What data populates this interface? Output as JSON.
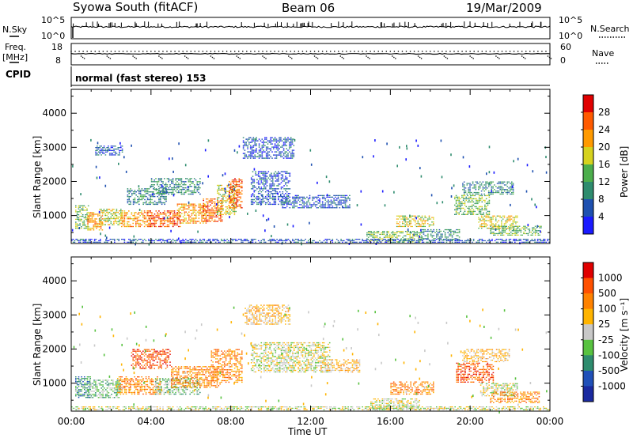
{
  "header": {
    "station": "Syowa South (fitACF)",
    "beam": "Beam 06",
    "date": "19/Mar/2009"
  },
  "noise_panel": {
    "left_label": "N.Sky",
    "right_label": "N.Search",
    "left_ticks": [
      "10^5",
      "10^0"
    ],
    "right_ticks": [
      "10^5",
      "10^0"
    ]
  },
  "freq_panel": {
    "left_label_1": "Freq.",
    "left_label_2": "[MHz]",
    "right_label": "Nave",
    "left_ticks": [
      "18",
      "8"
    ],
    "right_ticks": [
      "60",
      "0"
    ]
  },
  "cpid_panel": {
    "label": "CPID",
    "value": "normal (fast stereo) 153"
  },
  "colors": {
    "power_scale": [
      "#1a1aff",
      "#1e50b0",
      "#2e8c6e",
      "#4cae4c",
      "#d6d21e",
      "#ff9a00",
      "#ff5a00",
      "#e00000"
    ],
    "velocity_scale": [
      "#1a2aa0",
      "#2050b8",
      "#2e8c6e",
      "#58c240",
      "#c8c8c8",
      "#ffb400",
      "#ff8200",
      "#ff5000",
      "#e00000"
    ]
  },
  "chart_data": [
    {
      "type": "heatmap",
      "name": "Power",
      "ylabel": "Slant Range [km]",
      "xlabel": "",
      "x_ticks": [
        "00:00",
        "04:00",
        "08:00",
        "12:00",
        "16:00",
        "20:00",
        "00:00"
      ],
      "y_ticks": [
        1000,
        2000,
        3000,
        4000
      ],
      "ylim": [
        180,
        4700
      ],
      "xlim_hours": [
        0,
        24
      ],
      "colorbar_label": "Power [dB]",
      "colorbar_ticks": [
        4,
        8,
        12,
        16,
        20,
        24,
        28
      ],
      "regions": [
        {
          "t0": 0.2,
          "t1": 0.9,
          "r0": 600,
          "r1": 1300,
          "level": 3
        },
        {
          "t0": 0.8,
          "t1": 1.6,
          "r0": 550,
          "r1": 1100,
          "level": 5
        },
        {
          "t0": 1.4,
          "t1": 2.6,
          "r0": 700,
          "r1": 1200,
          "level": 4
        },
        {
          "t0": 2.5,
          "t1": 4.0,
          "r0": 650,
          "r1": 1150,
          "level": 5
        },
        {
          "t0": 3.8,
          "t1": 5.5,
          "r0": 650,
          "r1": 1150,
          "level": 6
        },
        {
          "t0": 5.3,
          "t1": 6.8,
          "r0": 750,
          "r1": 1350,
          "level": 5
        },
        {
          "t0": 6.6,
          "t1": 7.6,
          "r0": 800,
          "r1": 1500,
          "level": 6
        },
        {
          "t0": 7.3,
          "t1": 8.3,
          "r0": 1000,
          "r1": 1900,
          "level": 4
        },
        {
          "t0": 7.9,
          "t1": 8.6,
          "r0": 1200,
          "r1": 2100,
          "level": 6
        },
        {
          "t0": 2.8,
          "t1": 4.8,
          "r0": 1300,
          "r1": 1800,
          "level": 2
        },
        {
          "t0": 4.0,
          "t1": 6.5,
          "r0": 1600,
          "r1": 2100,
          "level": 2
        },
        {
          "t0": 1.2,
          "t1": 2.6,
          "r0": 2750,
          "r1": 3050,
          "level": 1
        },
        {
          "t0": 8.6,
          "t1": 11.2,
          "r0": 2650,
          "r1": 3300,
          "level": 1
        },
        {
          "t0": 9.0,
          "t1": 11.0,
          "r0": 1300,
          "r1": 2300,
          "level": 1
        },
        {
          "t0": 10.5,
          "t1": 14.0,
          "r0": 1200,
          "r1": 1600,
          "level": 1
        },
        {
          "t0": 14.8,
          "t1": 17.6,
          "r0": 200,
          "r1": 550,
          "level": 3
        },
        {
          "t0": 16.3,
          "t1": 18.2,
          "r0": 650,
          "r1": 1000,
          "level": 4
        },
        {
          "t0": 17.5,
          "t1": 19.5,
          "r0": 250,
          "r1": 600,
          "level": 2
        },
        {
          "t0": 19.2,
          "t1": 21.0,
          "r0": 1000,
          "r1": 1600,
          "level": 3
        },
        {
          "t0": 20.4,
          "t1": 22.4,
          "r0": 600,
          "r1": 1000,
          "level": 4
        },
        {
          "t0": 21.0,
          "t1": 23.6,
          "r0": 400,
          "r1": 700,
          "level": 3
        },
        {
          "t0": 19.6,
          "t1": 22.2,
          "r0": 1600,
          "r1": 2000,
          "level": 2
        },
        {
          "t0": 0.0,
          "t1": 24.0,
          "r0": 190,
          "r1": 320,
          "level": 1
        }
      ]
    },
    {
      "type": "heatmap",
      "name": "Velocity",
      "ylabel": "Slant Range [km]",
      "xlabel": "Time UT",
      "x_ticks": [
        "00:00",
        "04:00",
        "08:00",
        "12:00",
        "16:00",
        "20:00",
        "00:00"
      ],
      "y_ticks": [
        1000,
        2000,
        3000,
        4000
      ],
      "ylim": [
        180,
        4700
      ],
      "xlim_hours": [
        0,
        24
      ],
      "colorbar_label": "Velocity [m s⁻¹]",
      "colorbar_ticks": [
        "1000",
        "500",
        "100",
        "25",
        "-25",
        "-100",
        "-500",
        "-1000"
      ],
      "regions": [
        {
          "t0": 0.2,
          "t1": 1.0,
          "r0": 550,
          "r1": 1200,
          "level": 2
        },
        {
          "t0": 0.9,
          "t1": 2.5,
          "r0": 550,
          "r1": 1100,
          "level": 3
        },
        {
          "t0": 2.3,
          "t1": 4.5,
          "r0": 650,
          "r1": 1200,
          "level": 6
        },
        {
          "t0": 4.2,
          "t1": 6.5,
          "r0": 650,
          "r1": 1150,
          "level": 3
        },
        {
          "t0": 5.0,
          "t1": 7.5,
          "r0": 850,
          "r1": 1500,
          "level": 6
        },
        {
          "t0": 7.0,
          "t1": 8.6,
          "r0": 1000,
          "r1": 2000,
          "level": 6
        },
        {
          "t0": 3.0,
          "t1": 5.0,
          "r0": 1400,
          "r1": 2000,
          "level": 7
        },
        {
          "t0": 8.7,
          "t1": 11.0,
          "r0": 2700,
          "r1": 3300,
          "level": 5
        },
        {
          "t0": 9.0,
          "t1": 13.0,
          "r0": 1300,
          "r1": 2200,
          "level": 4
        },
        {
          "t0": 12.5,
          "t1": 14.5,
          "r0": 1300,
          "r1": 1700,
          "level": 5
        },
        {
          "t0": 15.0,
          "t1": 17.5,
          "r0": 200,
          "r1": 550,
          "level": 4
        },
        {
          "t0": 16.0,
          "t1": 18.2,
          "r0": 650,
          "r1": 1050,
          "level": 6
        },
        {
          "t0": 19.3,
          "t1": 21.2,
          "r0": 1000,
          "r1": 1600,
          "level": 7
        },
        {
          "t0": 20.5,
          "t1": 22.4,
          "r0": 600,
          "r1": 1000,
          "level": 4
        },
        {
          "t0": 21.0,
          "t1": 23.5,
          "r0": 400,
          "r1": 750,
          "level": 6
        },
        {
          "t0": 19.6,
          "t1": 22.0,
          "r0": 1600,
          "r1": 2000,
          "level": 5
        },
        {
          "t0": 0.0,
          "t1": 24.0,
          "r0": 190,
          "r1": 320,
          "level": 4
        }
      ]
    }
  ]
}
